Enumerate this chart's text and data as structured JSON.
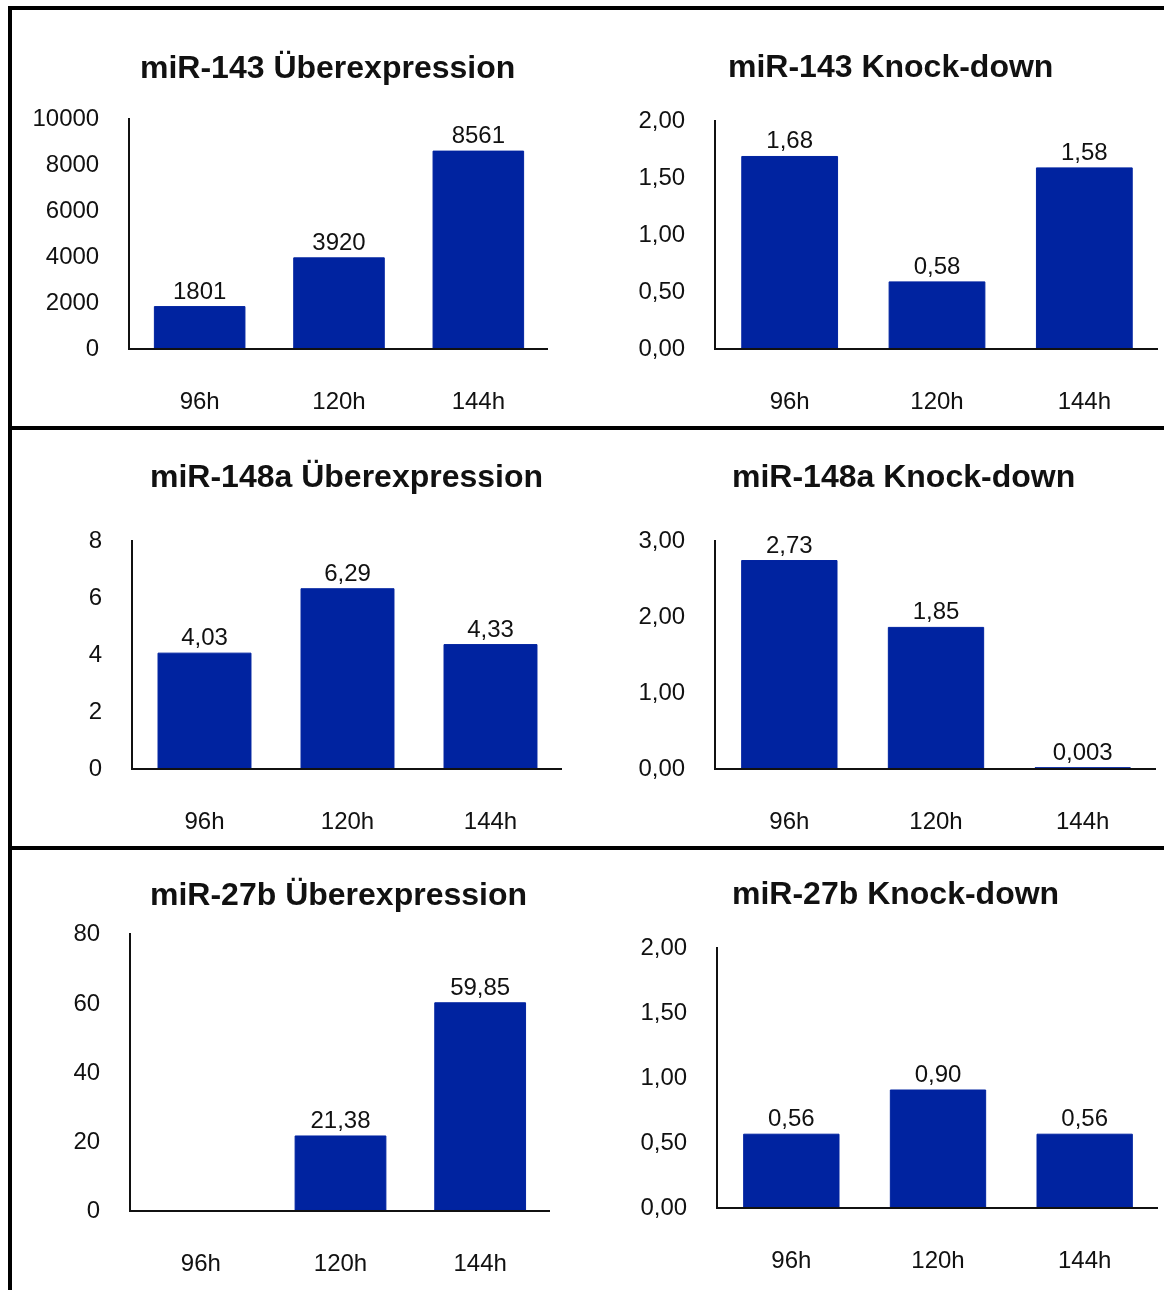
{
  "chart_data": [
    {
      "type": "bar",
      "title": "miR-143 Überexpression",
      "categories": [
        "96h",
        "120h",
        "144h"
      ],
      "values": [
        1801,
        3920,
        8561
      ],
      "color": "#0023a0",
      "data_labels": true,
      "ylim": [
        0,
        10000
      ],
      "yticks": [
        0,
        2000,
        4000,
        6000,
        8000,
        10000
      ]
    },
    {
      "type": "bar",
      "title": "miR-143 Knock-down",
      "categories": [
        "96h",
        "120h",
        "144h"
      ],
      "values": [
        1.68,
        0.58,
        1.58
      ],
      "value_labels": [
        "1,68",
        "0,58",
        "1,58"
      ],
      "color": "#0023a0",
      "ylim": [
        0,
        2
      ],
      "yticks": [
        {
          "value": 0,
          "label": "0,00"
        },
        {
          "value": 0.5,
          "label": "0,50"
        },
        {
          "value": 1,
          "label": "1,00"
        },
        {
          "value": 1.5,
          "label": "1,50"
        },
        {
          "value": 2,
          "label": "2,00"
        }
      ]
    },
    {
      "type": "bar",
      "title": "miR-148a Überexpression",
      "categories": [
        "96h",
        "120h",
        "144h"
      ],
      "values": [
        4.03,
        6.29,
        4.33
      ],
      "value_labels": [
        "4,03",
        "6,29",
        "4,33"
      ],
      "color": "#0023a0",
      "ylim": [
        0,
        8
      ],
      "yticks": [
        0,
        2,
        4,
        6,
        8
      ]
    },
    {
      "type": "bar",
      "title": "miR-148a Knock-down",
      "categories": [
        "96h",
        "120h",
        "144h"
      ],
      "values": [
        2.73,
        1.85,
        0.003
      ],
      "value_labels": [
        "2,73",
        "1,85",
        "0,003"
      ],
      "color": "#0023a0",
      "ylim": [
        0,
        3
      ],
      "yticks": [
        {
          "value": 0,
          "label": "0,00"
        },
        {
          "value": 1,
          "label": "1,00"
        },
        {
          "value": 2,
          "label": "2,00"
        },
        {
          "value": 3,
          "label": "3,00"
        }
      ]
    },
    {
      "type": "bar",
      "title": "miR-27b Überexpression",
      "categories": [
        "96h",
        "120h",
        "144h"
      ],
      "values": [
        null,
        21.38,
        59.85
      ],
      "value_labels": [
        null,
        "21,38",
        "59,85"
      ],
      "color": "#0023a0",
      "ylim": [
        0,
        80
      ],
      "yticks": [
        0,
        20,
        40,
        60,
        80
      ]
    },
    {
      "type": "bar",
      "title": "miR-27b Knock-down",
      "categories": [
        "96h",
        "120h",
        "144h"
      ],
      "values": [
        0.56,
        0.9,
        0.56
      ],
      "value_labels": [
        "0,56",
        "0,90",
        "0,56"
      ],
      "color": "#0023a0",
      "ylim": [
        0,
        2
      ],
      "yticks": [
        {
          "value": 0,
          "label": "0,00"
        },
        {
          "value": 0.5,
          "label": "0,50"
        },
        {
          "value": 1,
          "label": "1,00"
        },
        {
          "value": 1.5,
          "label": "1,50"
        },
        {
          "value": 2,
          "label": "2,00"
        }
      ]
    }
  ]
}
